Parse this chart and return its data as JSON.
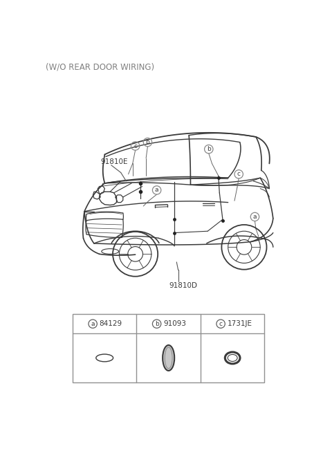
{
  "title": "(W/O REAR DOOR WIRING)",
  "title_color": "#808080",
  "title_fontsize": 8.5,
  "bg_color": "#ffffff",
  "label_91810E": "91810E",
  "label_91810D": "91810D",
  "part_a": "84129",
  "part_b": "91093",
  "part_c": "1731JE",
  "line_color": "#3a3a3a",
  "circle_color": "#888888",
  "text_color": "#3a3a3a",
  "label_color": "#3a3a3a"
}
